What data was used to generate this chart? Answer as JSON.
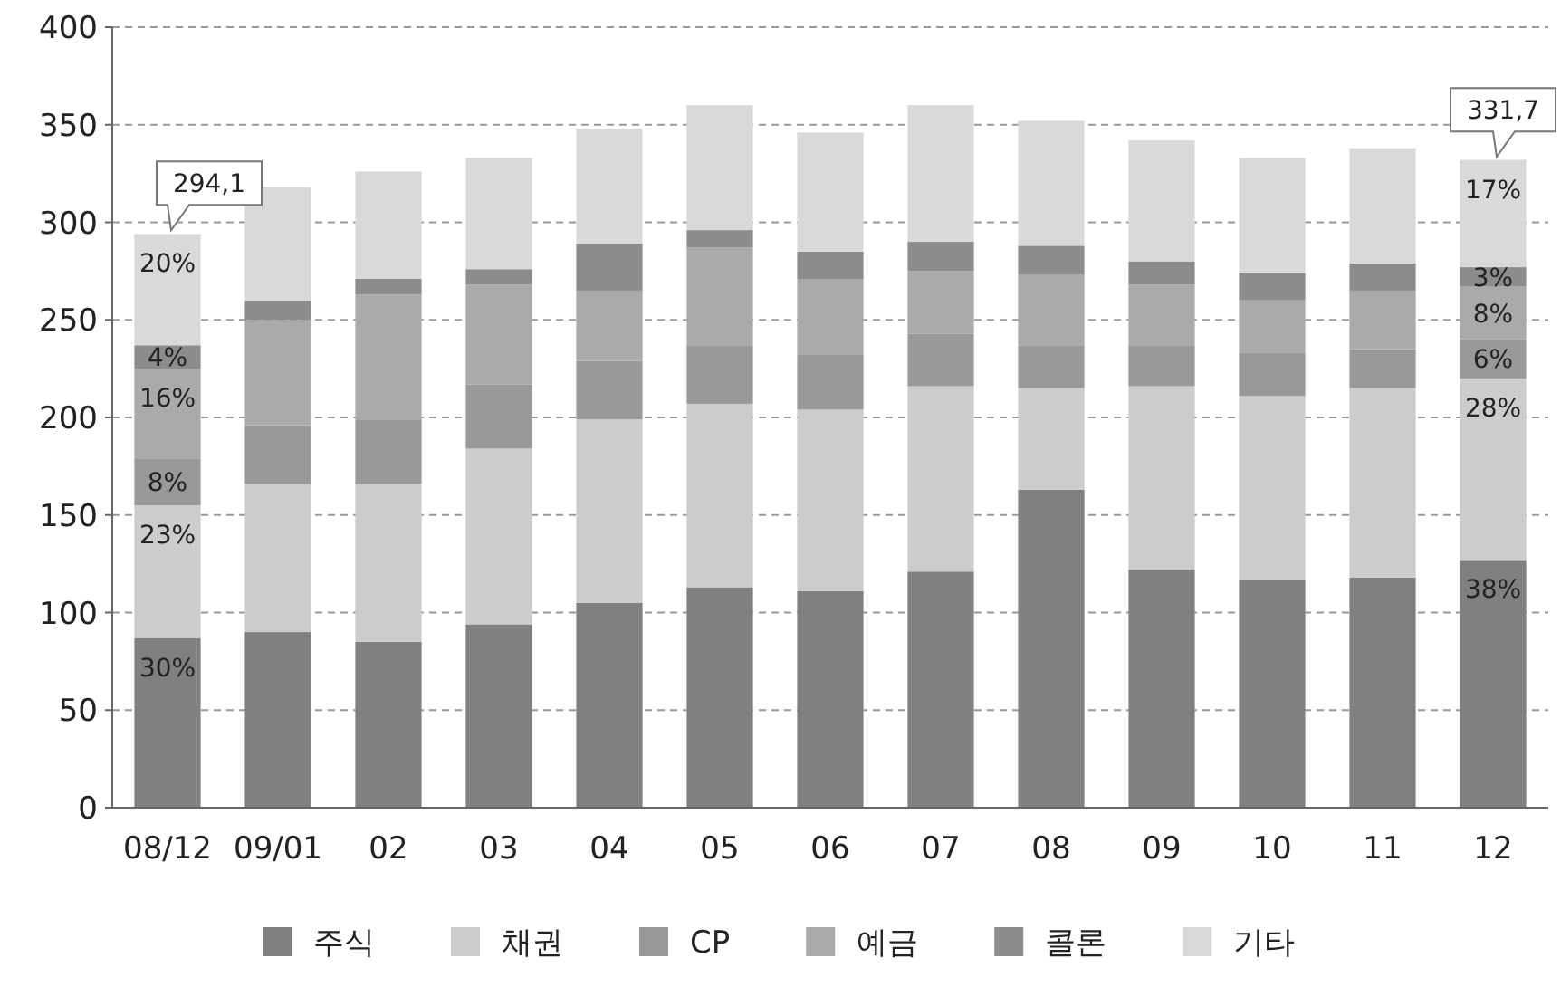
{
  "chart_data": {
    "type": "bar",
    "stacked": true,
    "categories": [
      "08/12",
      "09/01",
      "02",
      "03",
      "04",
      "05",
      "06",
      "07",
      "08",
      "09",
      "10",
      "11",
      "12"
    ],
    "series": [
      {
        "name": "주식",
        "color": "#808080",
        "values": [
          87,
          90,
          85,
          94,
          105,
          113,
          111,
          121,
          163,
          122,
          117,
          118,
          127
        ]
      },
      {
        "name": "채권",
        "color": "#cccccc",
        "values": [
          68,
          76,
          81,
          90,
          94,
          94,
          93,
          95,
          52,
          94,
          94,
          97,
          93
        ]
      },
      {
        "name": "CP",
        "color": "#999999",
        "values": [
          24,
          30,
          33,
          33,
          30,
          30,
          28,
          27,
          22,
          21,
          22,
          20,
          20
        ]
      },
      {
        "name": "예금",
        "color": "#aaaaaa",
        "values": [
          46,
          54,
          64,
          51,
          36,
          50,
          39,
          32,
          36,
          31,
          27,
          30,
          27
        ]
      },
      {
        "name": "콜론",
        "color": "#8c8c8c",
        "values": [
          12,
          10,
          8,
          8,
          24,
          9,
          14,
          15,
          15,
          12,
          14,
          14,
          10
        ]
      },
      {
        "name": "기타",
        "color": "#d9d9d9",
        "values": [
          57,
          58,
          55,
          57,
          59,
          64,
          61,
          70,
          64,
          62,
          59,
          59,
          55
        ]
      }
    ],
    "ylim": [
      0,
      400
    ],
    "yticks": [
      0,
      50,
      100,
      150,
      200,
      250,
      300,
      350,
      400
    ],
    "grid": "y",
    "legend": "bottom",
    "annotations": [
      {
        "text": "294,1",
        "x": "08/12",
        "y": 294.1
      },
      {
        "text": "331,7",
        "x": "12",
        "y": 331.7
      },
      {
        "text": "30%",
        "x": "08/12",
        "y": 87
      },
      {
        "text": "23%",
        "x": "08/12",
        "y": 155
      },
      {
        "text": "8%",
        "x": "08/12",
        "y": 179
      },
      {
        "text": "16%",
        "x": "08/12",
        "y": 225
      },
      {
        "text": "4%",
        "x": "08/12",
        "y": 237
      },
      {
        "text": "20%",
        "x": "08/12",
        "y": 294
      },
      {
        "text": "38%",
        "x": "12",
        "y": 127
      },
      {
        "text": "28%",
        "x": "12",
        "y": 220
      },
      {
        "text": "6%",
        "x": "12",
        "y": 240
      },
      {
        "text": "8%",
        "x": "12",
        "y": 267
      },
      {
        "text": "3%",
        "x": "12",
        "y": 277
      },
      {
        "text": "17%",
        "x": "12",
        "y": 332
      }
    ]
  }
}
